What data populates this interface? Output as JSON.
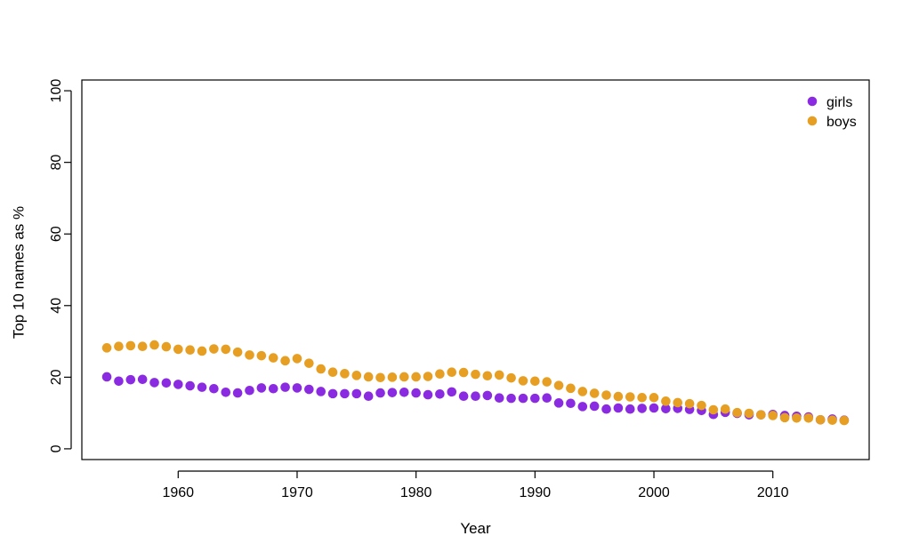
{
  "chart_data": {
    "type": "scatter",
    "title": "",
    "xlabel": "Year",
    "ylabel": "Top 10 names as %",
    "xlim": [
      1951.9,
      2018.1
    ],
    "ylim": [
      -3,
      103
    ],
    "x_ticks": [
      1960,
      1970,
      1980,
      1990,
      2000,
      2010
    ],
    "y_ticks": [
      0,
      20,
      40,
      60,
      80,
      100
    ],
    "legend_position": "top-right",
    "x": [
      1954,
      1955,
      1956,
      1957,
      1958,
      1959,
      1960,
      1961,
      1962,
      1963,
      1964,
      1965,
      1966,
      1967,
      1968,
      1969,
      1970,
      1971,
      1972,
      1973,
      1974,
      1975,
      1976,
      1977,
      1978,
      1979,
      1980,
      1981,
      1982,
      1983,
      1984,
      1985,
      1986,
      1987,
      1988,
      1989,
      1990,
      1991,
      1992,
      1993,
      1994,
      1995,
      1996,
      1997,
      1998,
      1999,
      2000,
      2001,
      2002,
      2003,
      2004,
      2005,
      2006,
      2007,
      2008,
      2009,
      2010,
      2011,
      2012,
      2013,
      2014,
      2015,
      2016
    ],
    "series": [
      {
        "name": "girls",
        "color": "#8a2be2",
        "values": [
          20.1,
          18.9,
          19.3,
          19.4,
          18.5,
          18.4,
          18.0,
          17.6,
          17.2,
          16.8,
          15.8,
          15.6,
          16.3,
          17.0,
          16.8,
          17.2,
          17.0,
          16.6,
          16.0,
          15.4,
          15.4,
          15.4,
          14.7,
          15.6,
          15.7,
          15.8,
          15.6,
          15.1,
          15.3,
          15.9,
          14.7,
          14.7,
          14.9,
          14.2,
          14.1,
          14.1,
          14.1,
          14.2,
          12.8,
          12.7,
          11.8,
          11.9,
          11.1,
          11.4,
          11.1,
          11.3,
          11.4,
          11.2,
          11.3,
          11.0,
          10.7,
          9.6,
          10.2,
          9.9,
          9.5,
          9.5,
          9.6,
          9.3,
          9.1,
          8.9,
          8.1,
          8.3,
          8.0
        ]
      },
      {
        "name": "boys",
        "color": "#e69f22",
        "values": [
          28.2,
          28.6,
          28.8,
          28.6,
          29.0,
          28.5,
          27.8,
          27.6,
          27.3,
          27.9,
          27.8,
          27.0,
          26.2,
          26.0,
          25.4,
          24.6,
          25.2,
          23.9,
          22.3,
          21.4,
          21.0,
          20.5,
          20.1,
          19.9,
          20.0,
          20.1,
          20.1,
          20.2,
          20.9,
          21.4,
          21.3,
          20.8,
          20.4,
          20.6,
          19.8,
          19.0,
          18.9,
          18.7,
          17.7,
          16.9,
          16.0,
          15.5,
          15.0,
          14.6,
          14.5,
          14.3,
          14.3,
          13.3,
          12.9,
          12.6,
          12.1,
          10.9,
          11.1,
          10.1,
          9.9,
          9.5,
          9.3,
          8.7,
          8.6,
          8.6,
          8.1,
          8.0,
          7.9
        ]
      }
    ]
  }
}
